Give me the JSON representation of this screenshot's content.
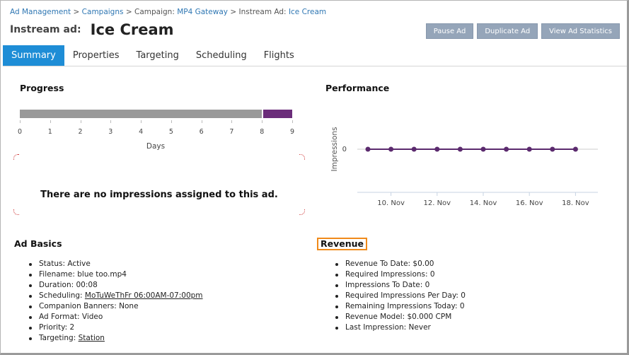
{
  "breadcrumb": {
    "items": [
      {
        "label": "Ad Management",
        "link": true
      },
      {
        "label": "Campaigns",
        "link": true
      },
      {
        "prefix": "Campaign: ",
        "label": "MP4 Gateway",
        "link": true
      },
      {
        "prefix": "Instream Ad: ",
        "label": "Ice Cream",
        "link": true
      }
    ],
    "separator": ">"
  },
  "header": {
    "prefix": "Instream ad:",
    "name": "Ice Cream",
    "buttons": {
      "pause": "Pause Ad",
      "duplicate": "Duplicate Ad",
      "stats": "View Ad Statistics"
    }
  },
  "tabs": [
    {
      "label": "Summary",
      "active": true
    },
    {
      "label": "Properties",
      "active": false
    },
    {
      "label": "Targeting",
      "active": false
    },
    {
      "label": "Scheduling",
      "active": false
    },
    {
      "label": "Flights",
      "active": false
    }
  ],
  "progress": {
    "title": "Progress",
    "elapsed_days": 8,
    "total_days": 9,
    "ticks": [
      "0",
      "1",
      "2",
      "3",
      "4",
      "5",
      "6",
      "7",
      "8",
      "9"
    ],
    "xlabel": "Days",
    "empty_message": "There are no impressions assigned to this ad.",
    "colors": {
      "elapsed": "#999999",
      "remaining": "#6b2d7a"
    }
  },
  "performance": {
    "title": "Performance"
  },
  "chart_data": {
    "type": "line",
    "ylabel": "Impressions",
    "y_ticks": [
      "0"
    ],
    "x_tick_labels": [
      "10. Nov",
      "12. Nov",
      "14. Nov",
      "16. Nov",
      "18. Nov"
    ],
    "x": [
      "9. Nov",
      "10. Nov",
      "11. Nov",
      "12. Nov",
      "13. Nov",
      "14. Nov",
      "15. Nov",
      "16. Nov",
      "17. Nov",
      "18. Nov"
    ],
    "series": [
      {
        "values": [
          0,
          0,
          0,
          0,
          0,
          0,
          0,
          0,
          0,
          0
        ],
        "color": "#5b2a6e"
      }
    ],
    "grid": false
  },
  "ad_basics": {
    "title": "Ad Basics",
    "items": [
      {
        "label": "Status: ",
        "value": "Active",
        "underline": false
      },
      {
        "label": "Filename: ",
        "value": "blue too.mp4",
        "underline": false
      },
      {
        "label": "Duration: ",
        "value": "00:08",
        "underline": false
      },
      {
        "label": "Scheduling: ",
        "value": "MoTuWeThFr 06:00AM-07:00pm",
        "underline": true
      },
      {
        "label": "Companion Banners: ",
        "value": "None",
        "underline": false
      },
      {
        "label": "Ad Format: ",
        "value": "Video",
        "underline": false
      },
      {
        "label": "Priority: ",
        "value": "2",
        "underline": false
      },
      {
        "label": "Targeting: ",
        "value": "Station",
        "underline": true
      }
    ]
  },
  "revenue": {
    "title": "Revenue",
    "items": [
      "Revenue To Date: $0.00",
      "Required Impressions: 0",
      "Impressions To Date: 0",
      "Required Impressions Per Day: 0",
      "Remaining Impressions Today: 0",
      "Revenue Model: $0.000 CPM",
      "Last Impression: Never"
    ]
  },
  "colors": {
    "accent": "#1e8dd6",
    "button": "#95a5b9",
    "link": "#2f77b3",
    "highlight": "#f08a1a"
  }
}
